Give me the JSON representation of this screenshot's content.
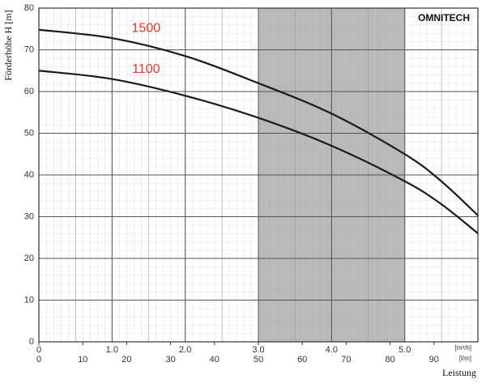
{
  "chart_data": {
    "type": "line",
    "brand": "OMNITECH",
    "y_label": "Förderhöhe H [m]",
    "x_label": "Leistung",
    "x_unit": "[m³/h]",
    "x2_unit": "[l/m]",
    "x": [
      0,
      1,
      2,
      3,
      4,
      5,
      5.5,
      6
    ],
    "series": [
      {
        "name": "1500",
        "color": "#1a1a1a",
        "label_color": "#e0392b",
        "values": [
          74.8,
          72.8,
          68.5,
          62,
          54.7,
          45,
          38.5,
          30.3
        ]
      },
      {
        "name": "1100",
        "color": "#1a1a1a",
        "label_color": "#e0392b",
        "values": [
          65,
          63,
          59,
          53.7,
          47,
          38.5,
          33,
          26
        ]
      }
    ],
    "xlim": [
      0,
      6
    ],
    "xticks": [
      0,
      {
        "value": 1,
        "label": "1.0"
      },
      {
        "value": 2,
        "label": "2.0"
      },
      {
        "value": 3,
        "label": "3.0"
      },
      {
        "value": 4,
        "label": "4.0"
      },
      {
        "value": 5,
        "label": "5.0"
      }
    ],
    "x2lim": [
      0,
      100
    ],
    "x2ticks": [
      0,
      10,
      20,
      30,
      40,
      50,
      60,
      70,
      80,
      90
    ],
    "ylim": [
      0,
      80
    ],
    "yticks": [
      0,
      10,
      20,
      30,
      40,
      50,
      60,
      70,
      80
    ],
    "shaded_range": [
      3,
      5
    ],
    "shade_color": "#b9b9b9",
    "grid": true
  }
}
